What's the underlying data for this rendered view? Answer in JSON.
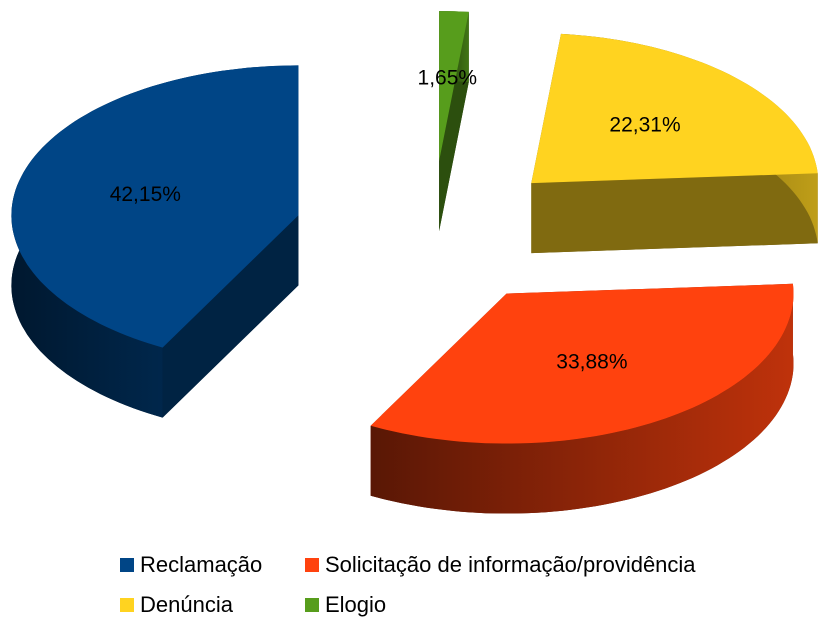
{
  "chart_data": {
    "type": "pie3d",
    "categories": [
      "Reclamação",
      "Solicitação de informação/providência",
      "Denúncia",
      "Elogio"
    ],
    "values": [
      42.15,
      33.88,
      22.31,
      1.65
    ],
    "value_labels": [
      "42,15%",
      "33,88%",
      "22,31%",
      "1,65%"
    ],
    "colors": [
      "#004586",
      "#ff420e",
      "#ffd320",
      "#579d1c"
    ],
    "legend": "bottom"
  }
}
